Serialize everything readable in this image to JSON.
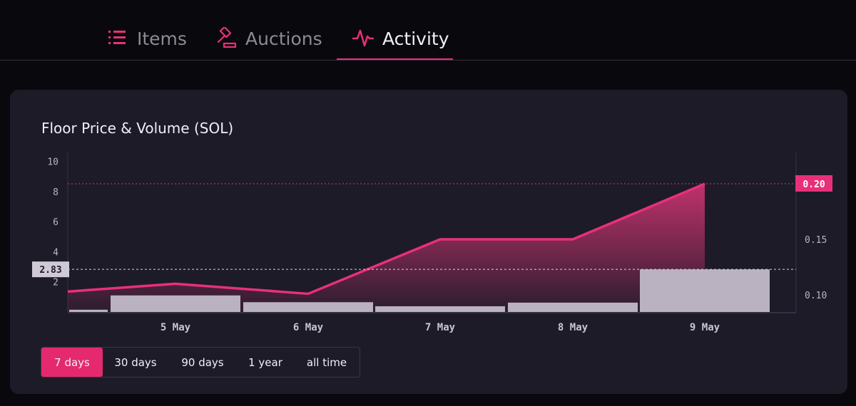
{
  "tabs": {
    "items": [
      {
        "label": "Items",
        "icon": "list-icon",
        "active": false
      },
      {
        "label": "Auctions",
        "icon": "gavel-icon",
        "active": false
      },
      {
        "label": "Activity",
        "icon": "activity-pulse-icon",
        "active": true
      }
    ]
  },
  "card": {
    "title": "Floor Price & Volume (SOL)"
  },
  "range": {
    "options": [
      "7 days",
      "30 days",
      "90 days",
      "1 year",
      "all time"
    ],
    "selected": "7 days"
  },
  "colors": {
    "accent": "#e8307a",
    "card_bg": "#1d1b28",
    "page_bg": "#09090d",
    "volume_bar": "#bab1c1"
  },
  "chart_data": {
    "type": "line",
    "title": "",
    "x_axis": {
      "range": [
        "4 May",
        "9 May"
      ],
      "tick_labels": [
        "5 May",
        "6 May",
        "7 May",
        "8 May",
        "9 May"
      ]
    },
    "left_axis": {
      "label": "",
      "ticks": [
        2,
        4,
        6,
        8,
        10
      ],
      "ylim": [
        0,
        10.5
      ]
    },
    "right_axis": {
      "label": "",
      "ticks": [
        0.1,
        0.15
      ],
      "ylim": [
        0.085,
        0.21
      ]
    },
    "series": [
      {
        "type": "area-line",
        "axis": "right",
        "x": [
          "4 May",
          "5 May",
          "6 May",
          "7 May",
          "8 May",
          "9 May"
        ],
        "values": [
          0.103,
          0.11,
          0.101,
          0.15,
          0.15,
          0.2
        ]
      },
      {
        "type": "bar",
        "axis": "left",
        "x": [
          "4 May",
          "5 May",
          "6 May",
          "7 May",
          "8 May",
          "9 May"
        ],
        "values": [
          0.15,
          1.1,
          0.65,
          0.38,
          0.62,
          2.83
        ]
      }
    ],
    "crosshair": {
      "left_value": "2.83",
      "right_value": "0.20"
    },
    "grid": false
  }
}
